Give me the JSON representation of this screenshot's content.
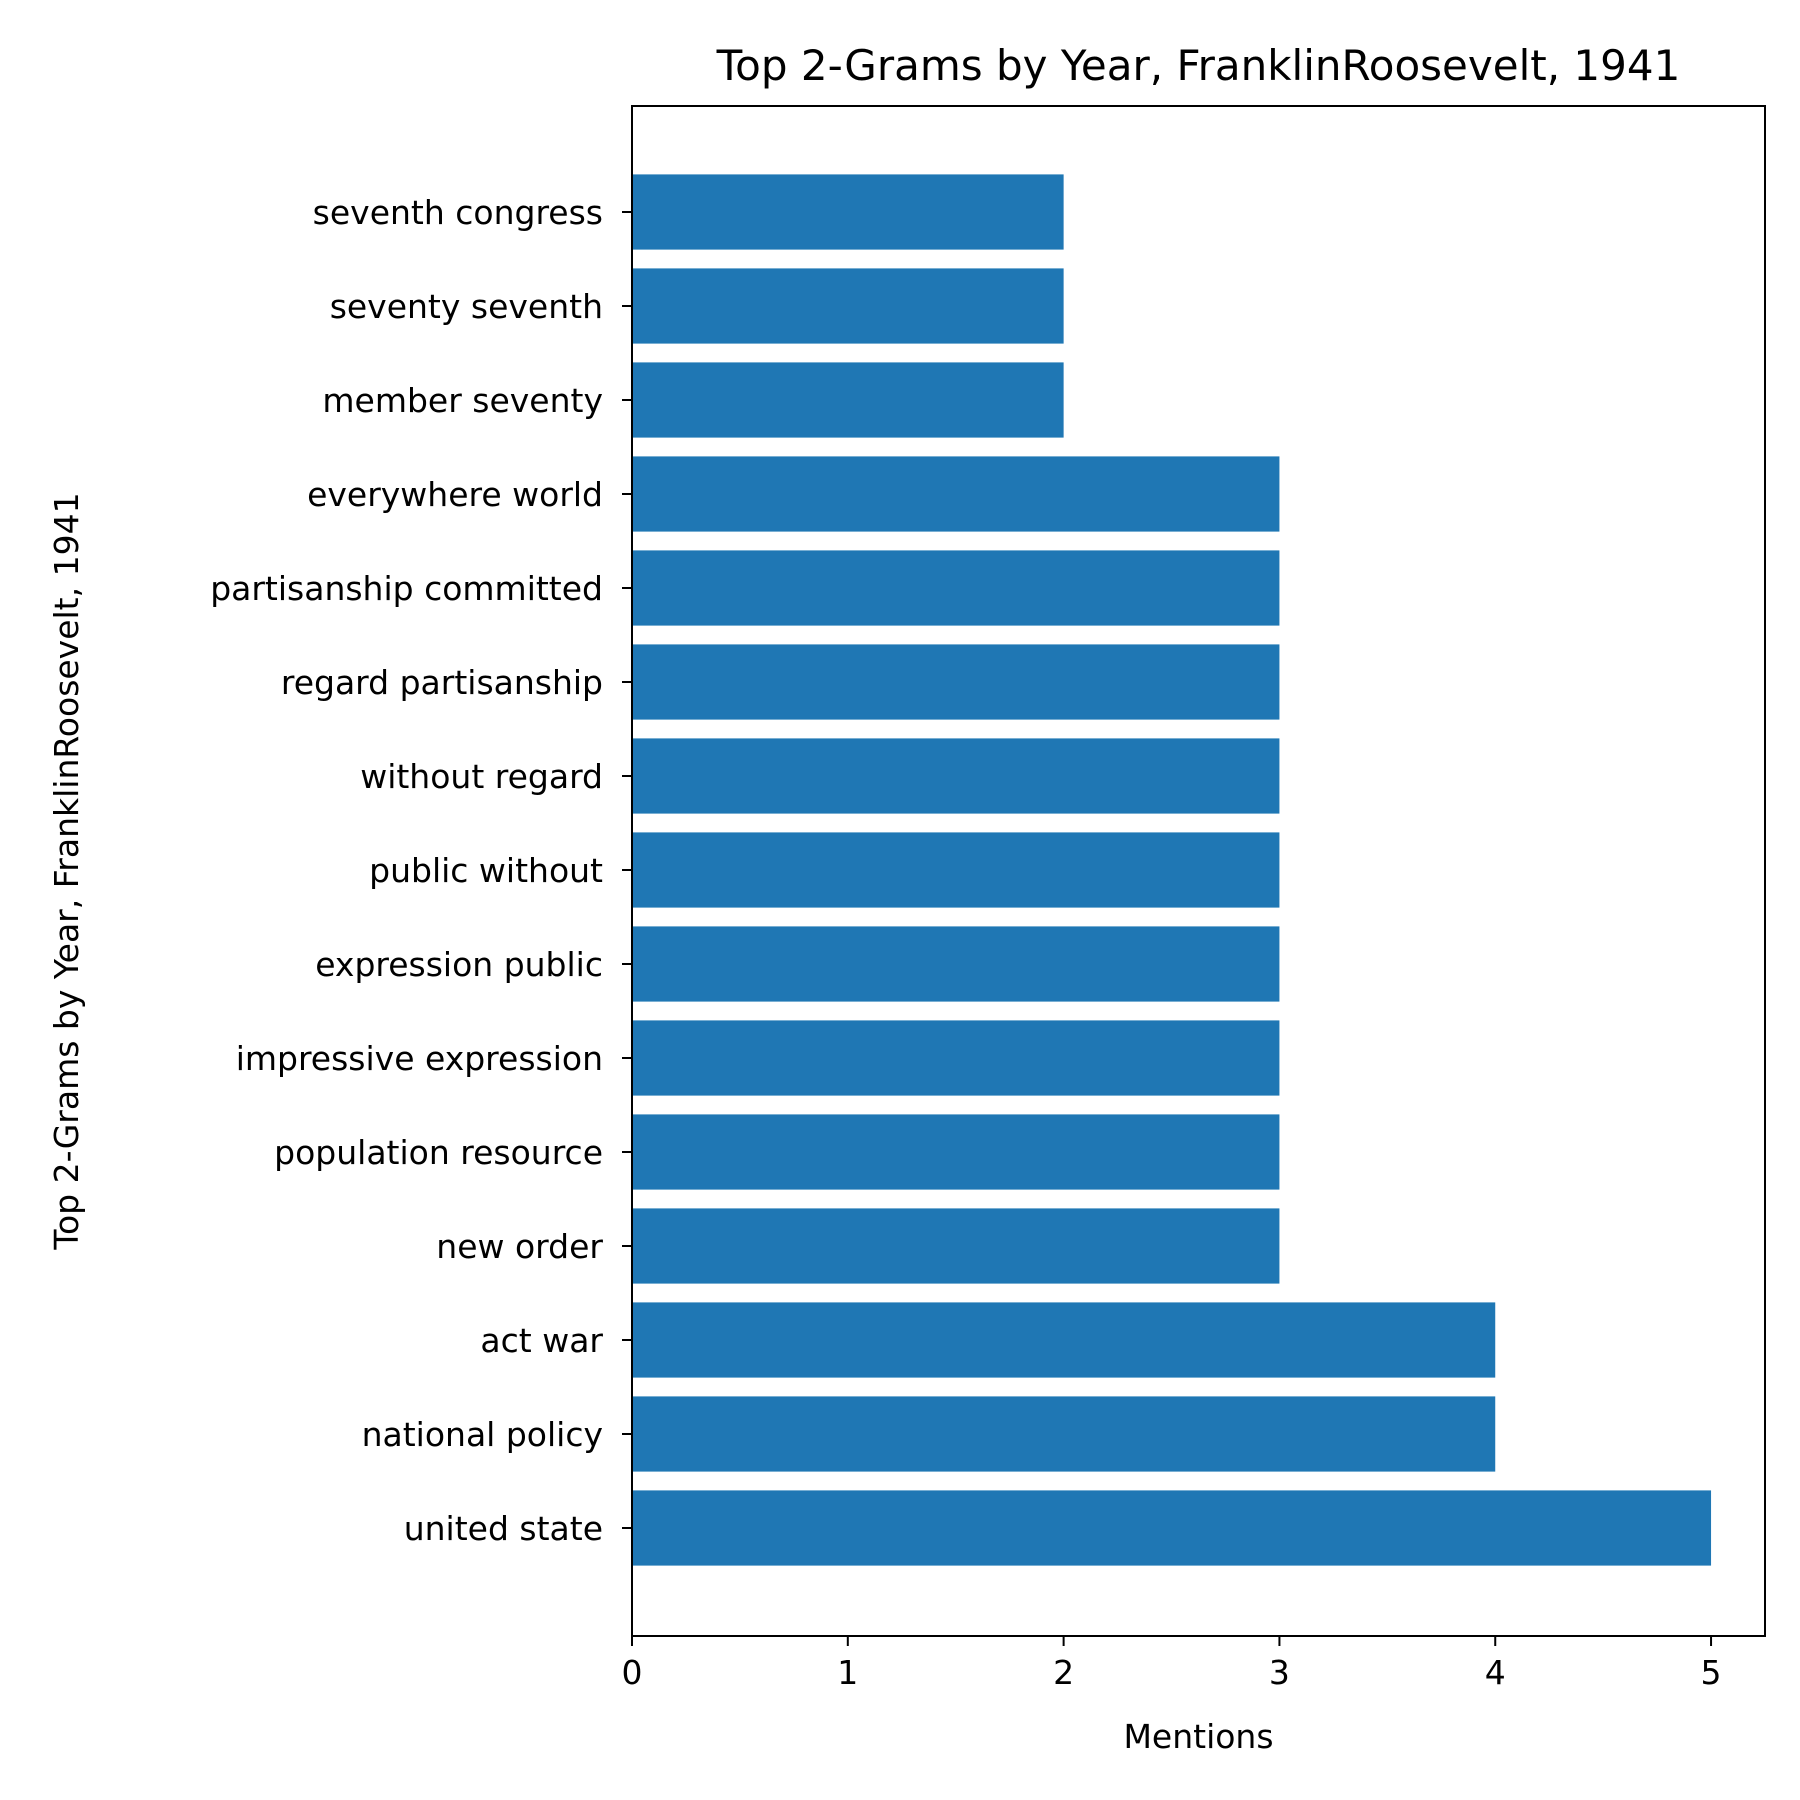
{
  "chart_data": {
    "type": "bar",
    "orientation": "horizontal",
    "title": "Top 2-Grams by Year, FranklinRoosevelt, 1941",
    "xlabel": "Mentions",
    "ylabel": "Top 2-Grams by Year, FranklinRoosevelt, 1941",
    "categories": [
      "united state",
      "national policy",
      "act war",
      "new order",
      "population resource",
      "impressive expression",
      "expression public",
      "public without",
      "without regard",
      "regard partisanship",
      "partisanship committed",
      "everywhere world",
      "member seventy",
      "seventy seventh",
      "seventh congress"
    ],
    "values": [
      5,
      4,
      4,
      3,
      3,
      3,
      3,
      3,
      3,
      3,
      3,
      3,
      2,
      2,
      2
    ],
    "xlim": [
      0,
      5.25
    ],
    "xticks": [
      0,
      1,
      2,
      3,
      4,
      5
    ],
    "grid": false,
    "legend": "none",
    "bar_color": "#1f77b4"
  }
}
